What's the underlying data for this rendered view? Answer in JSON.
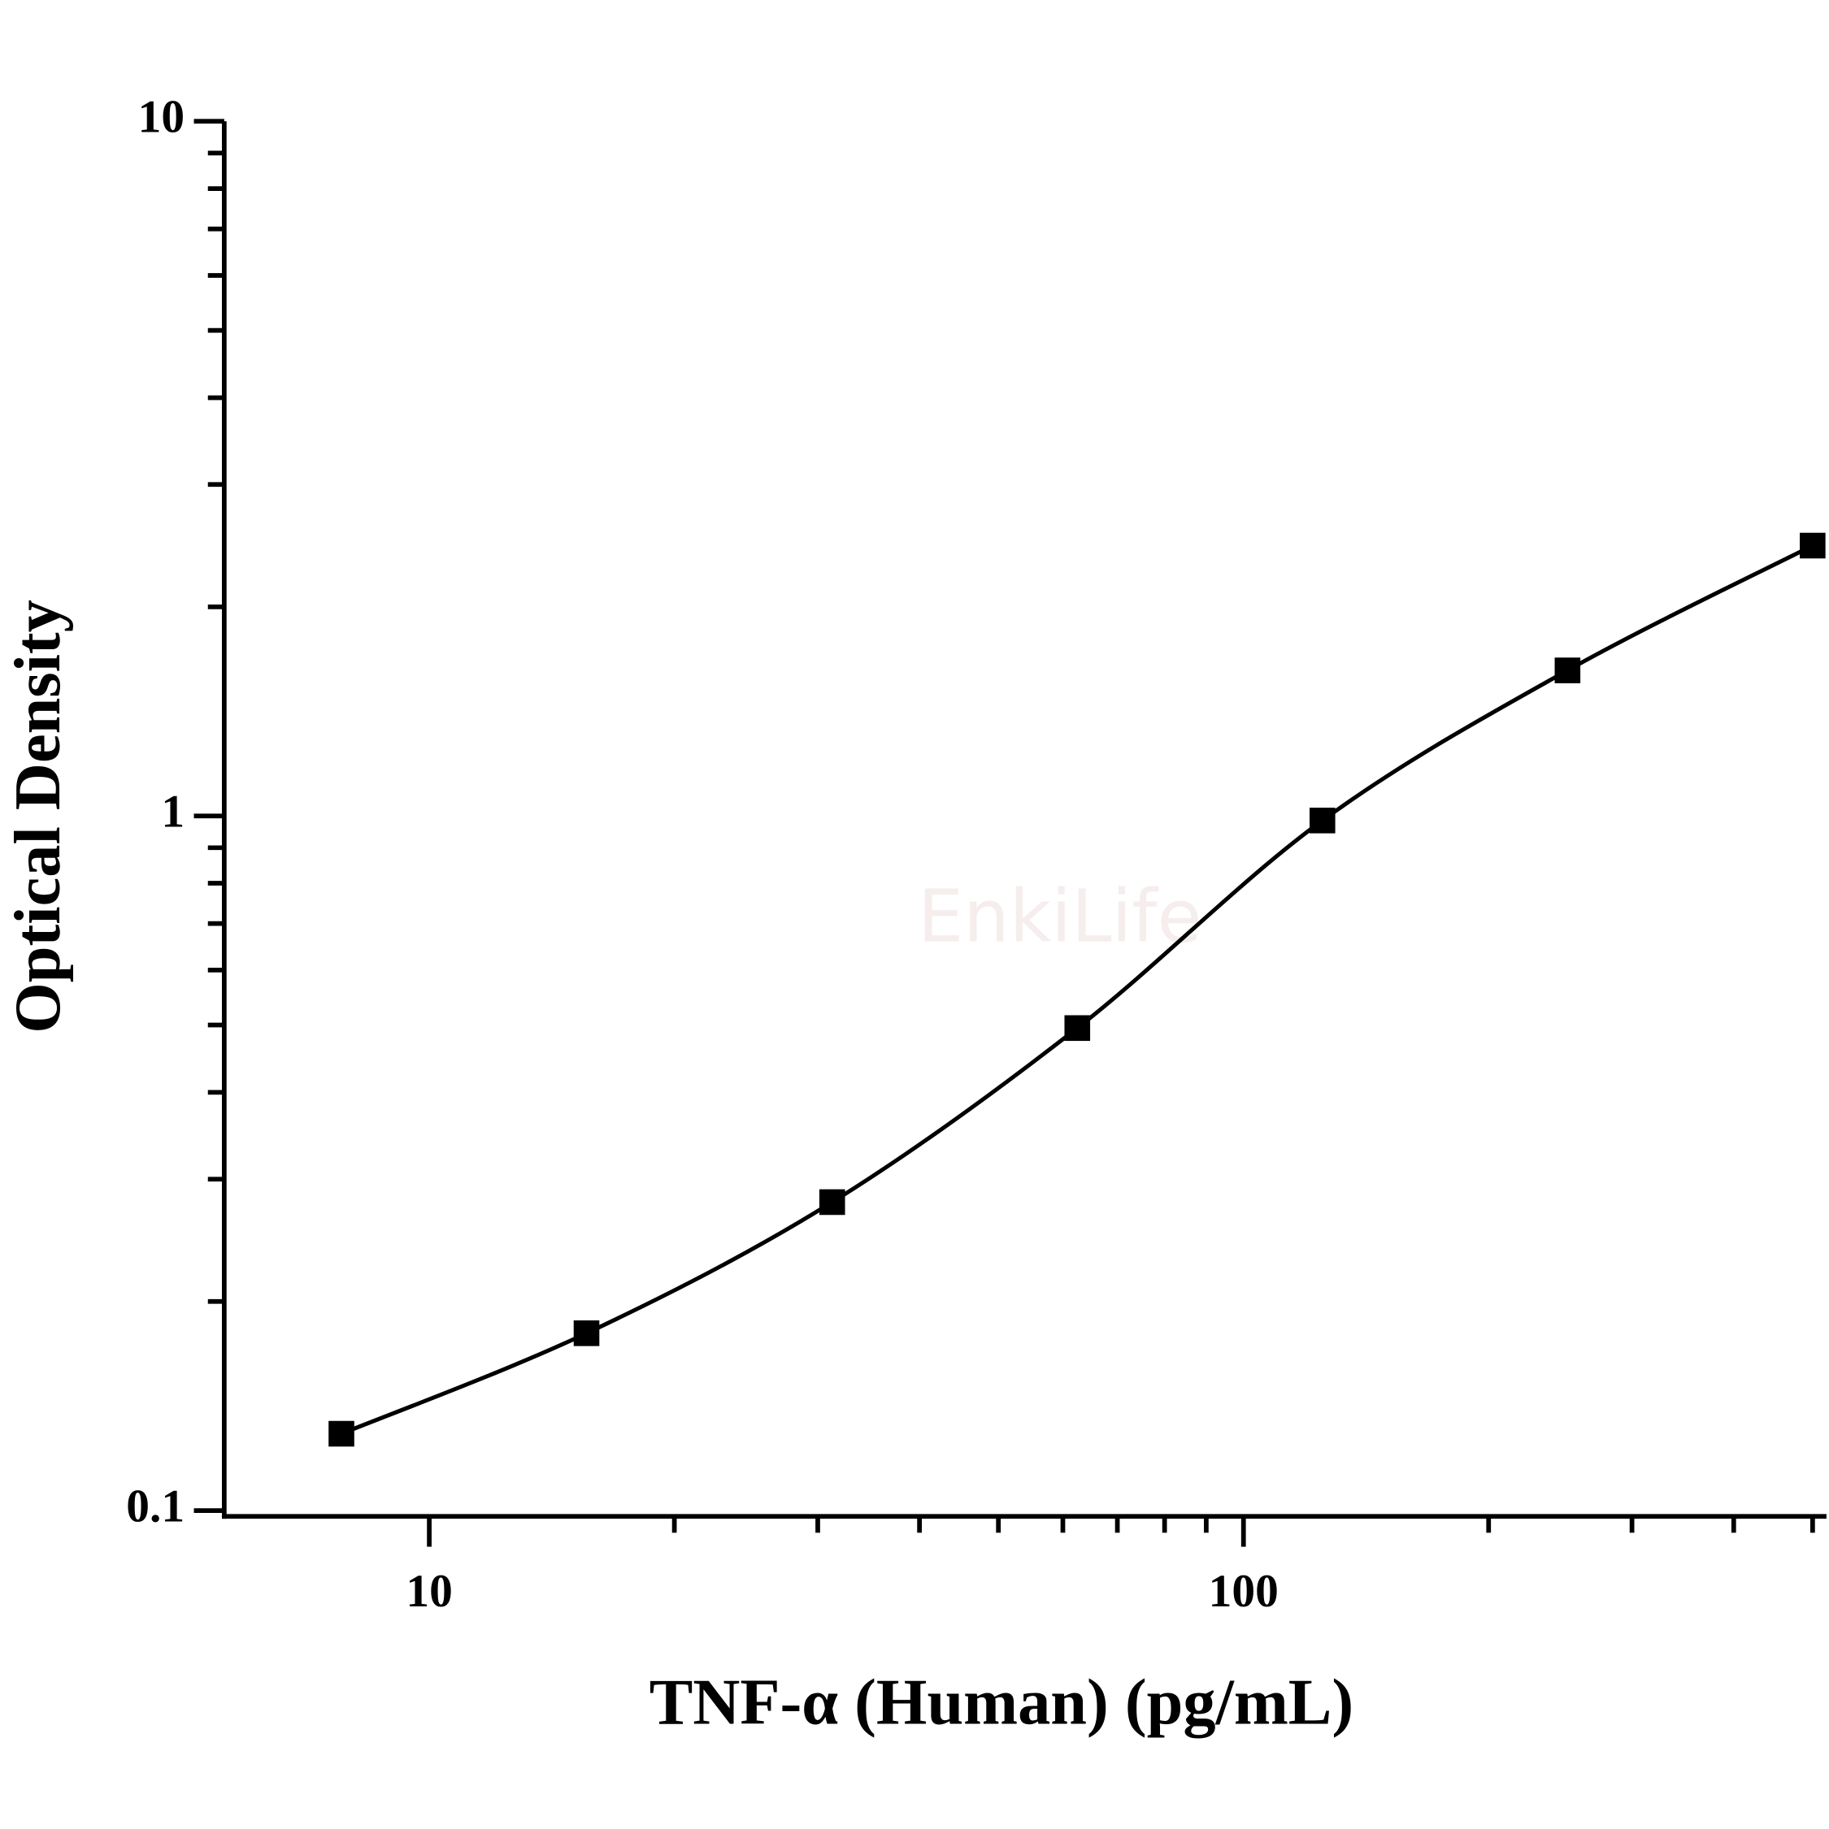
{
  "chart_data": {
    "type": "scatter",
    "xlabel": "TNF-α (Human) (pg/mL)",
    "ylabel": "Optical Density",
    "watermark": "EnkiLife",
    "x": [
      7.8,
      15.6,
      31.25,
      62.5,
      125,
      250,
      500
    ],
    "series": [
      {
        "color": "#000000",
        "values": [
          0.129,
          0.18,
          0.278,
          0.495,
          0.985,
          1.62,
          2.45
        ]
      }
    ],
    "fit_curve": true,
    "xscale": "log",
    "yscale": "log",
    "xlim": [
      5.6,
      520
    ],
    "ylim": [
      0.1,
      10
    ],
    "xticks": [
      10,
      100
    ],
    "yticks": [
      0.1,
      1,
      10
    ],
    "minor_xticks": [
      20,
      30,
      40,
      50,
      60,
      70,
      80,
      90,
      200,
      300,
      400,
      500
    ],
    "minor_yticks": [
      0.2,
      0.3,
      0.4,
      0.5,
      0.6,
      0.7,
      0.8,
      0.9,
      2,
      3,
      4,
      5,
      6,
      7,
      8,
      9
    ],
    "grid": false
  }
}
